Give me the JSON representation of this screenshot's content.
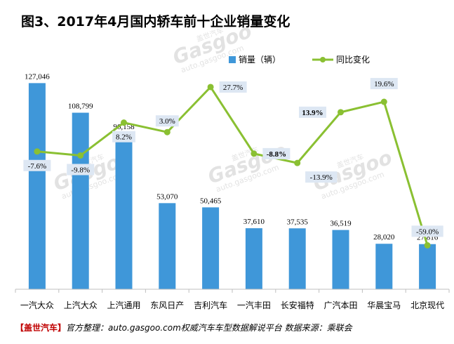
{
  "chart_data": {
    "type": "bar+line",
    "title": "图3、2017年4月国内轿车前十企业销量变化",
    "categories": [
      "一汽大众",
      "上汽大众",
      "上汽通用",
      "东风日产",
      "吉利汽车",
      "一汽丰田",
      "长安福特",
      "广汽本田",
      "华晨宝马",
      "北京现代"
    ],
    "series": [
      {
        "name": "销量（辆）",
        "type": "bar",
        "values": [
          127046,
          108799,
          96158,
          53070,
          50465,
          37610,
          37535,
          36519,
          28020,
          27816
        ],
        "labels": [
          "127,046",
          "108,799",
          "96,158",
          "53,070",
          "50,465",
          "37,610",
          "37,535",
          "36,519",
          "28,020",
          "27,816"
        ],
        "color": "#3f97d9"
      },
      {
        "name": "同比变化",
        "type": "line",
        "values": [
          -7.6,
          -9.8,
          8.2,
          3.0,
          27.7,
          -8.8,
          -13.9,
          13.9,
          19.6,
          -59.0
        ],
        "labels": [
          "-7.6%",
          "-9.8%",
          "8.2%",
          "3.0%",
          "27.7%",
          "-8.8%",
          "-13.9%",
          "13.9%",
          "19.6%",
          "-59.0%"
        ],
        "bold": [
          false,
          false,
          false,
          false,
          false,
          true,
          false,
          true,
          false,
          false
        ],
        "color": "#8ac032"
      }
    ],
    "legend": "top-right",
    "grid": false,
    "ylim_bar": [
      0,
      135000
    ],
    "ylim_line": [
      -70,
      35
    ]
  },
  "watermark": {
    "cn": "盖世汽车",
    "brand": "Gasgoo",
    "url": "auto.gasgoo.com"
  },
  "footer": {
    "brand": "【盖世汽车】",
    "text": "官方整理：auto.gasgoo.com权威汽车车型数据解说平台 数据来源：乘联会"
  }
}
